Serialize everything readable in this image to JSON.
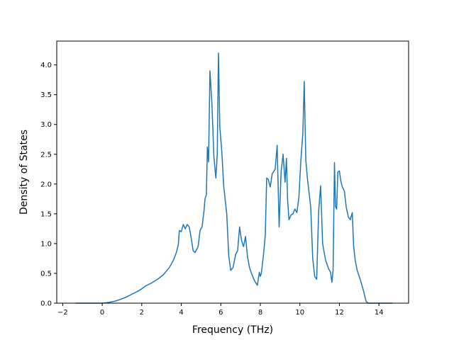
{
  "chart_data": {
    "type": "line",
    "title": "",
    "xlabel": "Frequency (THz)",
    "ylabel": "Density of States",
    "xlim": [
      -2.3,
      15.5
    ],
    "ylim": [
      0.0,
      4.4
    ],
    "xticks": [
      -2,
      0,
      2,
      4,
      6,
      8,
      10,
      12,
      14
    ],
    "xtick_labels": [
      "−2",
      "0",
      "2",
      "4",
      "6",
      "8",
      "10",
      "12",
      "14"
    ],
    "yticks": [
      0.0,
      0.5,
      1.0,
      1.5,
      2.0,
      2.5,
      3.0,
      3.5,
      4.0
    ],
    "ytick_labels": [
      "0.0",
      "0.5",
      "1.0",
      "1.5",
      "2.0",
      "2.5",
      "3.0",
      "3.5",
      "4.0"
    ],
    "grid": false,
    "legend": "none",
    "color": "#1f77b4",
    "series": [
      {
        "x": [
          -1.35,
          -0.5,
          0.0,
          0.3,
          0.6,
          0.9,
          1.2,
          1.5,
          1.8,
          2.0,
          2.2,
          2.5,
          2.8,
          3.1,
          3.4,
          3.6,
          3.75,
          3.85,
          3.9,
          4.0,
          4.1,
          4.2,
          4.3,
          4.4,
          4.5,
          4.6,
          4.7,
          4.85,
          4.95,
          5.05,
          5.15,
          5.2,
          5.27,
          5.32,
          5.38,
          5.45,
          5.55,
          5.65,
          5.75,
          5.82,
          5.88,
          5.95,
          6.05,
          6.15,
          6.3,
          6.4,
          6.5,
          6.62,
          6.75,
          6.85,
          6.95,
          7.05,
          7.15,
          7.25,
          7.35,
          7.45,
          7.55,
          7.7,
          7.85,
          7.95,
          8.0,
          8.05,
          8.15,
          8.25,
          8.32,
          8.4,
          8.5,
          8.6,
          8.75,
          8.85,
          8.95,
          9.05,
          9.15,
          9.25,
          9.32,
          9.38,
          9.45,
          9.55,
          9.65,
          9.75,
          9.85,
          9.95,
          10.05,
          10.15,
          10.22,
          10.3,
          10.38,
          10.45,
          10.55,
          10.65,
          10.75,
          10.85,
          10.95,
          11.05,
          11.15,
          11.3,
          11.45,
          11.55,
          11.62,
          11.68,
          11.75,
          11.8,
          11.86,
          11.92,
          12.0,
          12.07,
          12.15,
          12.25,
          12.35,
          12.45,
          12.55,
          12.65,
          12.72,
          12.8,
          12.9,
          13.05,
          13.2,
          13.35,
          13.45,
          13.6,
          14.1,
          14.7
        ],
        "y": [
          0.0,
          0.0,
          0.0,
          0.01,
          0.03,
          0.06,
          0.1,
          0.15,
          0.2,
          0.24,
          0.29,
          0.34,
          0.4,
          0.48,
          0.6,
          0.72,
          0.85,
          0.98,
          1.22,
          1.2,
          1.32,
          1.25,
          1.32,
          1.28,
          1.1,
          0.88,
          0.85,
          0.95,
          1.22,
          1.28,
          1.55,
          1.75,
          1.82,
          2.62,
          2.37,
          3.9,
          3.35,
          2.45,
          2.1,
          2.5,
          4.2,
          2.95,
          2.55,
          1.95,
          1.5,
          0.8,
          0.55,
          0.6,
          0.82,
          0.88,
          1.28,
          1.05,
          0.95,
          1.12,
          0.78,
          0.6,
          0.5,
          0.38,
          0.3,
          0.52,
          0.45,
          0.5,
          0.78,
          1.15,
          2.1,
          2.08,
          1.95,
          2.17,
          2.25,
          2.65,
          1.28,
          2.2,
          2.5,
          2.03,
          2.43,
          1.72,
          1.4,
          1.48,
          1.5,
          1.58,
          1.52,
          1.78,
          2.4,
          2.85,
          3.72,
          2.4,
          2.1,
          1.9,
          1.6,
          0.75,
          0.45,
          0.4,
          1.55,
          1.97,
          1.0,
          0.72,
          0.58,
          0.52,
          0.35,
          0.55,
          2.36,
          1.62,
          1.58,
          2.2,
          2.22,
          2.05,
          1.95,
          1.88,
          1.6,
          1.45,
          1.4,
          1.52,
          0.95,
          0.72,
          0.55,
          0.4,
          0.23,
          0.03,
          0.0,
          0.0,
          0.0,
          0.0
        ]
      }
    ]
  }
}
